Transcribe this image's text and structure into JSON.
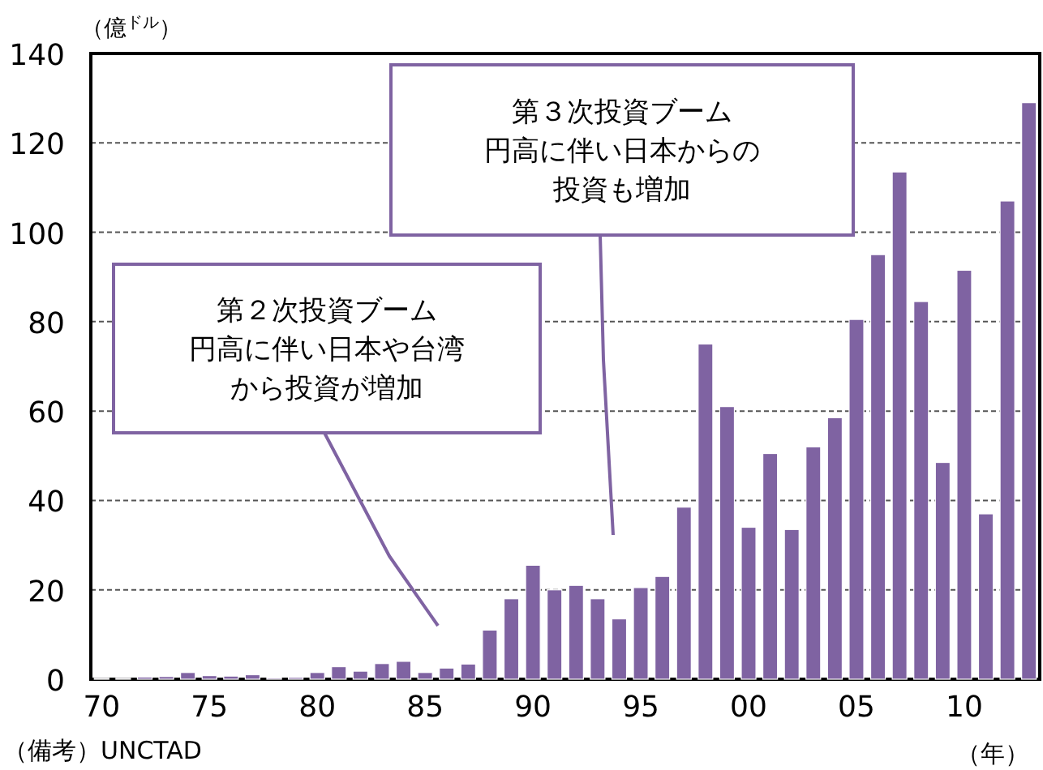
{
  "chart_data": {
    "type": "bar",
    "x": [
      1970,
      1971,
      1972,
      1973,
      1974,
      1975,
      1976,
      1977,
      1978,
      1979,
      1980,
      1981,
      1982,
      1983,
      1984,
      1985,
      1986,
      1987,
      1988,
      1989,
      1990,
      1991,
      1992,
      1993,
      1994,
      1995,
      1996,
      1997,
      1998,
      1999,
      2000,
      2001,
      2002,
      2003,
      2004,
      2005,
      2006,
      2007,
      2008,
      2009,
      2010,
      2011,
      2012,
      2013
    ],
    "values": [
      0.2,
      0.2,
      0.5,
      0.6,
      1.5,
      0.8,
      0.7,
      1,
      0.3,
      0.4,
      1.5,
      2.8,
      1.8,
      3.5,
      4,
      1.5,
      2.5,
      3.4,
      11,
      18,
      25.5,
      20,
      21,
      18,
      13.5,
      20.5,
      23,
      38.5,
      75,
      61,
      34,
      50.5,
      33.5,
      52,
      58.5,
      80.5,
      95,
      113.5,
      84.5,
      48.5,
      91.5,
      37,
      107,
      129
    ],
    "color": "#7f63a2",
    "ylabel": "（億$^{ドル}$）",
    "xlabel": "（年）",
    "xlim": [
      1969.5,
      2013.5
    ],
    "xticks": [
      {
        "value": 1970,
        "label": "70"
      },
      {
        "value": 1975,
        "label": "75"
      },
      {
        "value": 1980,
        "label": "80"
      },
      {
        "value": 1985,
        "label": "85"
      },
      {
        "value": 1990,
        "label": "90"
      },
      {
        "value": 1995,
        "label": "95"
      },
      {
        "value": 2000,
        "label": "00"
      },
      {
        "value": 2005,
        "label": "05"
      },
      {
        "value": 2010,
        "label": "10"
      }
    ],
    "ylim": [
      0,
      140
    ],
    "yticks": [
      0,
      20,
      40,
      60,
      80,
      100,
      120,
      140
    ],
    "grid": "y",
    "annotations": [
      "第２次投資ブーム円高に伴い日本や台湾から投資が増加",
      "第３次投資ブーム円高に伴い日本からの投資も増加",
      "（備考）UNCTAD"
    ]
  }
}
